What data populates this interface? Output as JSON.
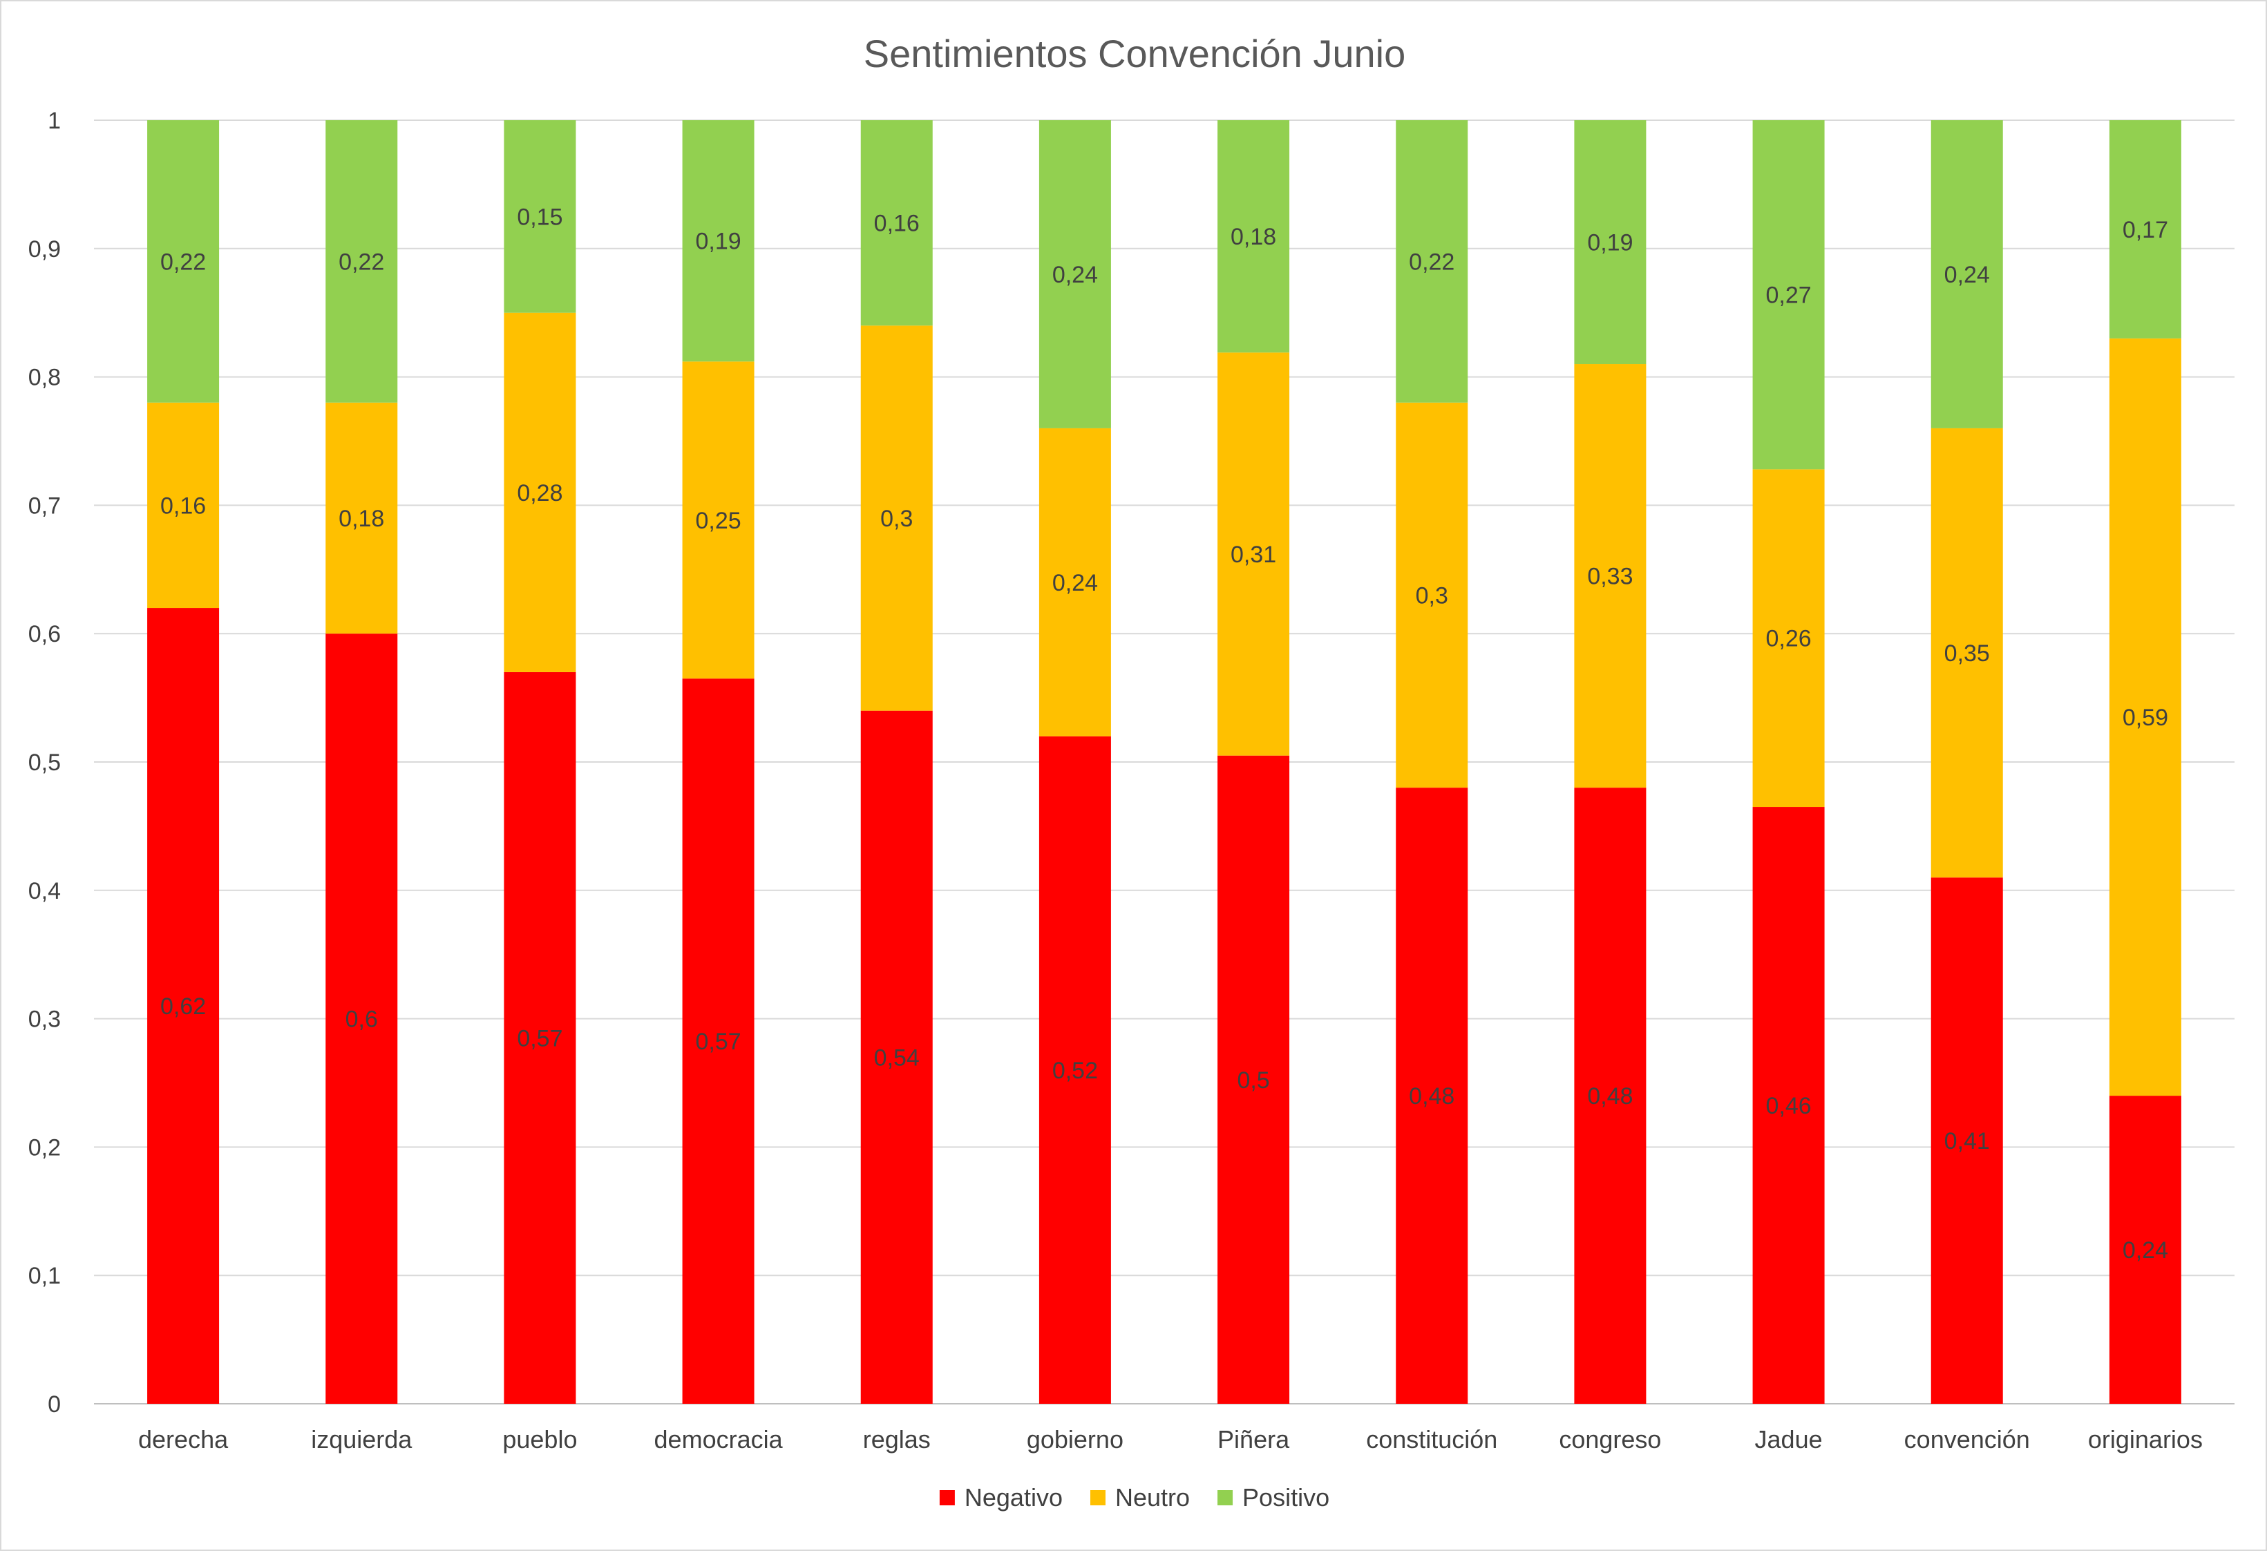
{
  "chart_data": {
    "type": "bar",
    "stacked": true,
    "title": "Sentimientos Convención Junio",
    "xlabel": "",
    "ylabel": "",
    "ylim": [
      0,
      1
    ],
    "yticks": [
      0,
      0.1,
      0.2,
      0.3,
      0.4,
      0.5,
      0.6,
      0.7,
      0.8,
      0.9,
      1
    ],
    "ytick_labels": [
      "0",
      "0,1",
      "0,2",
      "0,3",
      "0,4",
      "0,5",
      "0,6",
      "0,7",
      "0,8",
      "0,9",
      "1"
    ],
    "grid": true,
    "legend_position": "bottom",
    "categories": [
      "derecha",
      "izquierda",
      "pueblo",
      "democracia",
      "reglas",
      "gobierno",
      "Piñera",
      "constitución",
      "congreso",
      "Jadue",
      "convención",
      "originarios"
    ],
    "series": [
      {
        "name": "Negativo",
        "color": "#FF0000",
        "values": [
          0.62,
          0.6,
          0.57,
          0.565,
          0.54,
          0.52,
          0.505,
          0.48,
          0.48,
          0.465,
          0.41,
          0.24
        ],
        "labels": [
          "0,62",
          "0,6",
          "0,57",
          "0,57",
          "0,54",
          "0,52",
          "0,5",
          "0,48",
          "0,48",
          "0,46",
          "0,41",
          "0,24"
        ]
      },
      {
        "name": "Neutro",
        "color": "#FFC000",
        "values": [
          0.16,
          0.18,
          0.28,
          0.247,
          0.3,
          0.24,
          0.314,
          0.3,
          0.33,
          0.263,
          0.35,
          0.59
        ],
        "labels": [
          "0,16",
          "0,18",
          "0,28",
          "0,25",
          "0,3",
          "0,24",
          "0,31",
          "0,3",
          "0,33",
          "0,26",
          "0,35",
          "0,59"
        ]
      },
      {
        "name": "Positivo",
        "color": "#92D050",
        "values": [
          0.22,
          0.22,
          0.15,
          0.188,
          0.16,
          0.24,
          0.181,
          0.22,
          0.19,
          0.272,
          0.24,
          0.17
        ],
        "labels": [
          "0,22",
          "0,22",
          "0,15",
          "0,19",
          "0,16",
          "0,24",
          "0,18",
          "0,22",
          "0,19",
          "0,27",
          "0,24",
          "0,17"
        ]
      }
    ]
  }
}
